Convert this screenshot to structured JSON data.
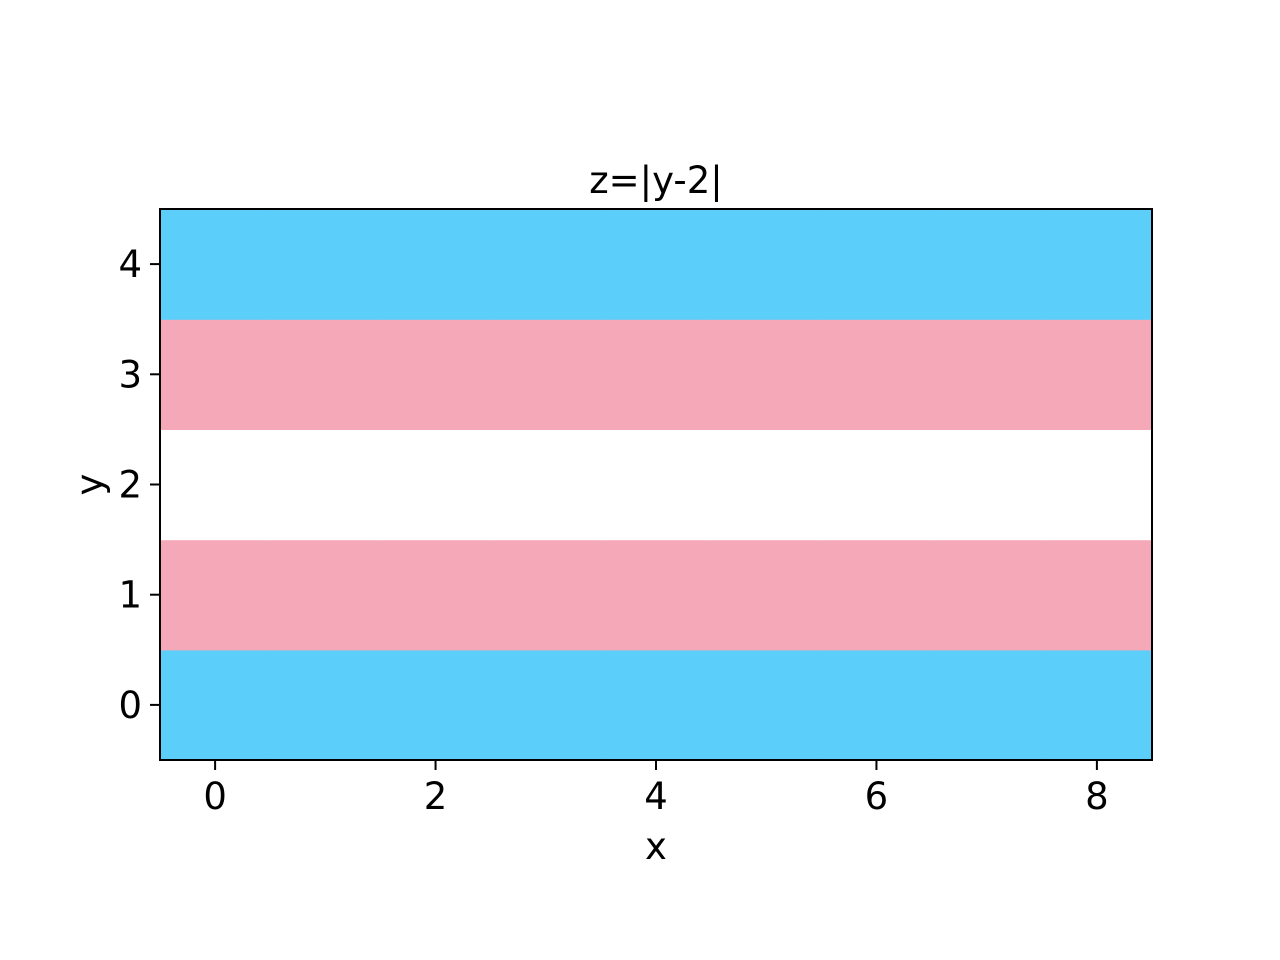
{
  "chart_data": {
    "type": "heatmap",
    "title": "z=|y-2|",
    "xlabel": "x",
    "ylabel": "y",
    "x": [
      0,
      1,
      2,
      3,
      4,
      5,
      6,
      7,
      8
    ],
    "y": [
      0,
      1,
      2,
      3,
      4
    ],
    "z_by_row": [
      2,
      1,
      0,
      1,
      2
    ],
    "xlim": [
      -0.5,
      8.5
    ],
    "ylim": [
      -0.5,
      4.5
    ],
    "xticks": [
      0,
      2,
      4,
      6,
      8
    ],
    "yticks": [
      0,
      1,
      2,
      3,
      4
    ],
    "xtick_labels": [
      "0",
      "2",
      "4",
      "6",
      "8"
    ],
    "ytick_labels": [
      "0",
      "1",
      "2",
      "3",
      "4"
    ],
    "colormap": {
      "0": "#ffffff",
      "1": "#f5a9b8",
      "2": "#5bcefa"
    },
    "grid": false
  }
}
